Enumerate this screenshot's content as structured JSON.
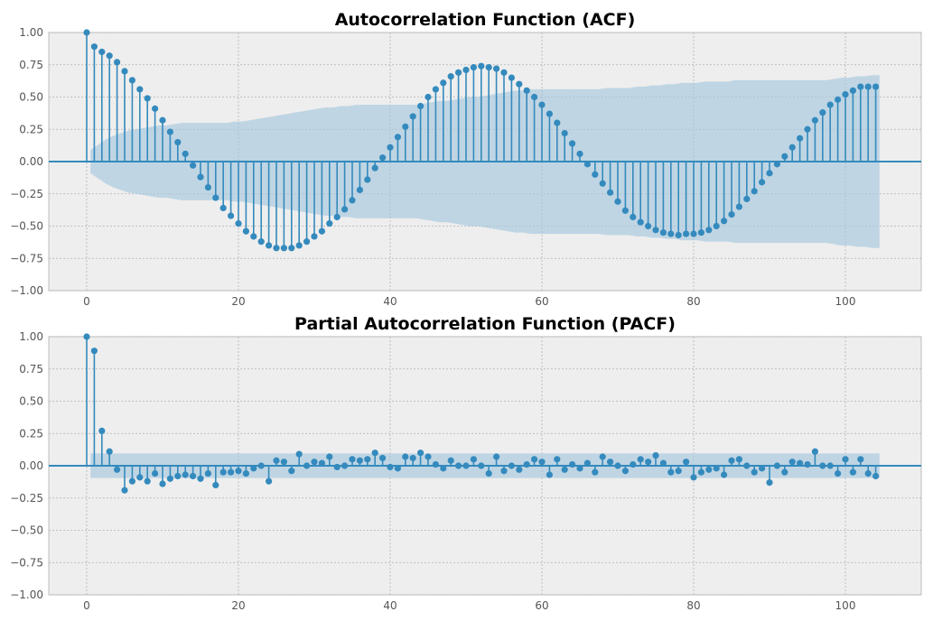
{
  "chart_data": [
    {
      "type": "stem",
      "title": "Autocorrelation Function (ACF)",
      "xlabel": "",
      "ylabel": "",
      "xlim": [
        -5,
        110
      ],
      "ylim": [
        -1.0,
        1.0
      ],
      "xticks": [
        "0",
        "20",
        "40",
        "60",
        "80",
        "100"
      ],
      "yticks": [
        "1.00",
        "0.75",
        "0.50",
        "0.25",
        "0.00",
        "−0.25",
        "−0.50",
        "−0.75",
        "−1.00"
      ],
      "grid": true,
      "lags_max": 104,
      "values": [
        1.0,
        0.89,
        0.85,
        0.82,
        0.77,
        0.7,
        0.63,
        0.56,
        0.49,
        0.41,
        0.32,
        0.23,
        0.15,
        0.06,
        -0.03,
        -0.12,
        -0.2,
        -0.28,
        -0.36,
        -0.42,
        -0.48,
        -0.54,
        -0.58,
        -0.62,
        -0.65,
        -0.67,
        -0.67,
        -0.67,
        -0.65,
        -0.62,
        -0.58,
        -0.54,
        -0.48,
        -0.43,
        -0.37,
        -0.3,
        -0.22,
        -0.14,
        -0.05,
        0.03,
        0.11,
        0.19,
        0.27,
        0.35,
        0.43,
        0.5,
        0.56,
        0.61,
        0.66,
        0.69,
        0.71,
        0.73,
        0.74,
        0.73,
        0.72,
        0.69,
        0.65,
        0.6,
        0.55,
        0.5,
        0.44,
        0.37,
        0.3,
        0.22,
        0.14,
        0.06,
        -0.02,
        -0.1,
        -0.17,
        -0.24,
        -0.31,
        -0.38,
        -0.43,
        -0.47,
        -0.5,
        -0.53,
        -0.55,
        -0.56,
        -0.57,
        -0.56,
        -0.56,
        -0.55,
        -0.53,
        -0.5,
        -0.46,
        -0.41,
        -0.35,
        -0.29,
        -0.23,
        -0.16,
        -0.09,
        -0.02,
        0.04,
        0.11,
        0.18,
        0.25,
        0.32,
        0.38,
        0.44,
        0.48,
        0.52,
        0.55,
        0.58,
        0.58,
        0.58
      ],
      "confint": [
        0.09,
        0.13,
        0.17,
        0.2,
        0.22,
        0.24,
        0.25,
        0.26,
        0.27,
        0.28,
        0.28,
        0.29,
        0.3,
        0.3,
        0.3,
        0.3,
        0.3,
        0.3,
        0.3,
        0.31,
        0.31,
        0.32,
        0.33,
        0.34,
        0.35,
        0.36,
        0.37,
        0.38,
        0.39,
        0.4,
        0.41,
        0.42,
        0.42,
        0.43,
        0.43,
        0.44,
        0.44,
        0.44,
        0.44,
        0.44,
        0.44,
        0.44,
        0.44,
        0.44,
        0.45,
        0.46,
        0.47,
        0.47,
        0.48,
        0.49,
        0.5,
        0.5,
        0.51,
        0.52,
        0.53,
        0.54,
        0.55,
        0.55,
        0.56,
        0.56,
        0.56,
        0.56,
        0.56,
        0.56,
        0.56,
        0.56,
        0.56,
        0.56,
        0.57,
        0.57,
        0.57,
        0.57,
        0.58,
        0.58,
        0.59,
        0.59,
        0.6,
        0.6,
        0.61,
        0.61,
        0.61,
        0.62,
        0.62,
        0.62,
        0.62,
        0.63,
        0.63,
        0.63,
        0.63,
        0.63,
        0.63,
        0.63,
        0.63,
        0.63,
        0.63,
        0.63,
        0.63,
        0.63,
        0.64,
        0.65,
        0.65,
        0.66,
        0.66,
        0.67,
        0.67
      ]
    },
    {
      "type": "stem",
      "title": "Partial Autocorrelation Function (PACF)",
      "xlabel": "",
      "ylabel": "",
      "xlim": [
        -5,
        110
      ],
      "ylim": [
        -1.0,
        1.0
      ],
      "xticks": [
        "0",
        "20",
        "40",
        "60",
        "80",
        "100"
      ],
      "yticks": [
        "1.00",
        "0.75",
        "0.50",
        "0.25",
        "0.00",
        "−0.25",
        "−0.50",
        "−0.75",
        "−1.00"
      ],
      "grid": true,
      "lags_max": 104,
      "values": [
        1.0,
        0.89,
        0.27,
        0.11,
        -0.03,
        -0.19,
        -0.12,
        -0.09,
        -0.12,
        -0.06,
        -0.14,
        -0.1,
        -0.08,
        -0.07,
        -0.08,
        -0.1,
        -0.06,
        -0.15,
        -0.05,
        -0.05,
        -0.04,
        -0.06,
        -0.02,
        0.0,
        -0.12,
        0.04,
        0.03,
        -0.04,
        0.09,
        0.0,
        0.03,
        0.02,
        0.07,
        -0.01,
        0.0,
        0.05,
        0.04,
        0.05,
        0.1,
        0.06,
        -0.01,
        -0.02,
        0.07,
        0.06,
        0.1,
        0.07,
        0.01,
        -0.02,
        0.04,
        0.0,
        0.0,
        0.05,
        0.0,
        -0.06,
        0.07,
        -0.04,
        0.0,
        -0.03,
        0.01,
        0.05,
        0.03,
        -0.07,
        0.05,
        -0.03,
        0.01,
        -0.02,
        0.02,
        -0.05,
        0.07,
        0.03,
        0.0,
        -0.04,
        0.01,
        0.05,
        0.03,
        0.08,
        0.02,
        -0.05,
        -0.04,
        0.03,
        -0.09,
        -0.05,
        -0.03,
        -0.02,
        -0.07,
        0.04,
        0.05,
        0.0,
        -0.05,
        -0.02,
        -0.13,
        0.0,
        -0.05,
        0.03,
        0.02,
        0.01,
        0.11,
        0.0,
        0.0,
        -0.06,
        0.05,
        -0.05,
        0.05,
        -0.06,
        -0.08
      ],
      "confint_const": 0.095
    }
  ],
  "colors": {
    "stem": "#348ABD",
    "confint_fill": "#A6C8DE",
    "axes_bg": "#EEEEEE",
    "grid": "#B2B2B2",
    "zero_line": "#348ABD"
  }
}
